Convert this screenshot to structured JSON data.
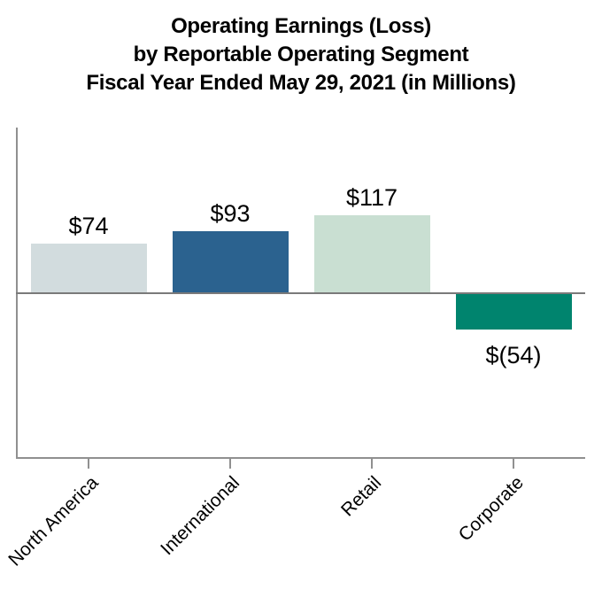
{
  "title": {
    "line1": "Operating Earnings (Loss)",
    "line2": "by Reportable Operating Segment",
    "line3": "Fiscal Year Ended May 29, 2021 (in Millions)"
  },
  "chart_data": {
    "type": "bar",
    "title": "Operating Earnings (Loss) by Reportable Operating Segment Fiscal Year Ended May 29, 2021 (in Millions)",
    "categories": [
      "North America",
      "International",
      "Retail",
      "Corporate"
    ],
    "values": [
      74,
      93,
      117,
      -54
    ],
    "value_labels": [
      "$74",
      "$93",
      "$117",
      "$(54)"
    ],
    "bar_colors": [
      "#d2dcde",
      "#2b628f",
      "#c9dfd2",
      "#00846e"
    ],
    "xlabel": "",
    "ylabel": "",
    "ylim": [
      -250,
      250
    ],
    "grid": false,
    "legend": false,
    "axis_color": "#909090",
    "zero_line_color": "#7a7a7a",
    "text_color": "#000000"
  }
}
